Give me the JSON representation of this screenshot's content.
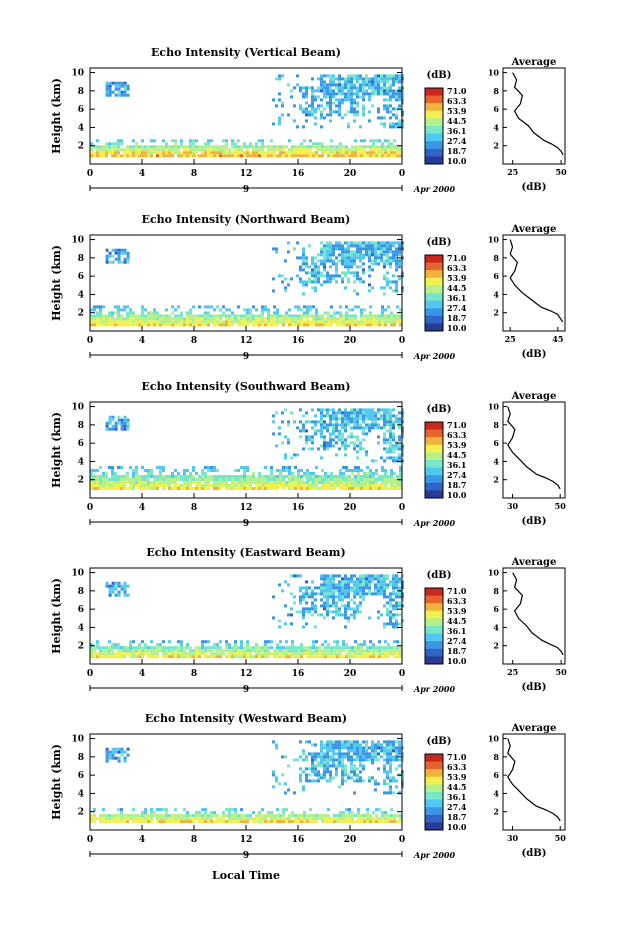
{
  "figure": {
    "colorbar_title": "(dB)",
    "colorbar_ticks": [
      "71.0",
      "63.3",
      "53.9",
      "44.5",
      "36.1",
      "27.4",
      "18.7",
      "10.0"
    ],
    "x_ticks": [
      "0",
      "4",
      "8",
      "12",
      "16",
      "20",
      "0"
    ],
    "y_ticks": [
      "2",
      "4",
      "6",
      "8",
      "10"
    ],
    "y_label": "Height (km)",
    "date_day": "9",
    "date_suffix": "Apr 2000",
    "profile_title": "Average",
    "profile_xlabel": "(dB)",
    "xlabel": "Local Time",
    "colors": {
      "scale": [
        "#283c96",
        "#3264c8",
        "#3c96e6",
        "#50c8f0",
        "#78e6c8",
        "#b4f08c",
        "#f0f050",
        "#f0b43c",
        "#e6642d",
        "#c8281e"
      ]
    }
  },
  "chart_data": [
    {
      "type": "heatmap",
      "title": "Echo Intensity (Vertical Beam)",
      "xlabel": "",
      "ylabel": "Height (km)",
      "xlim": [
        0,
        24
      ],
      "ylim": [
        0,
        10.5
      ],
      "value_range_db": [
        10,
        71
      ],
      "features": [
        {
          "name": "",
          "t": [
            1.2,
            3.0
          ],
          "h": [
            7.5,
            9.0
          ],
          "db": 28
        },
        {
          "name": "",
          "t": [
            14.0,
            24.0
          ],
          "h": [
            4.0,
            9.8
          ],
          "db": 30
        },
        {
          "name": "",
          "t": [
            0,
            24.0
          ],
          "h": [
            1.0,
            2.7
          ],
          "db": 45
        }
      ],
      "profile": {
        "title": "Average",
        "xlabel": "(dB)",
        "xticks": [
          "25",
          "50"
        ],
        "xlim": [
          20,
          52
        ],
        "x": [
          25,
          27,
          26,
          30,
          29,
          26,
          28,
          33,
          36,
          41,
          45,
          48,
          50,
          51
        ],
        "h": [
          10,
          9.2,
          8.4,
          7.5,
          6.6,
          5.8,
          5.0,
          4.2,
          3.4,
          2.6,
          2.2,
          1.8,
          1.4,
          1.0
        ]
      }
    },
    {
      "type": "heatmap",
      "title": "Echo Intensity (Northward Beam)",
      "xlabel": "",
      "ylabel": "Height (km)",
      "xlim": [
        0,
        24
      ],
      "ylim": [
        0,
        10.5
      ],
      "value_range_db": [
        10,
        71
      ],
      "features": [
        {
          "name": "",
          "t": [
            1.2,
            3.0
          ],
          "h": [
            7.5,
            9.0
          ],
          "db": 28
        },
        {
          "name": "",
          "t": [
            14.0,
            24.0
          ],
          "h": [
            4.0,
            9.8
          ],
          "db": 30
        },
        {
          "name": "",
          "t": [
            0,
            24.0
          ],
          "h": [
            0.8,
            2.8
          ],
          "db": 42
        }
      ],
      "profile": {
        "title": "Average",
        "xlabel": "(dB)",
        "xticks": [
          "25",
          "45"
        ],
        "xlim": [
          22,
          48
        ],
        "x": [
          25,
          26,
          25,
          28,
          27,
          25,
          27,
          30,
          34,
          38,
          42,
          45,
          46,
          47
        ],
        "h": [
          10,
          9.2,
          8.4,
          7.5,
          6.6,
          5.8,
          5.0,
          4.2,
          3.4,
          2.6,
          2.2,
          1.8,
          1.4,
          1.0
        ]
      }
    },
    {
      "type": "heatmap",
      "title": "Echo Intensity (Southward Beam)",
      "xlabel": "",
      "ylabel": "Height (km)",
      "xlim": [
        0,
        24
      ],
      "ylim": [
        0,
        10.5
      ],
      "value_range_db": [
        10,
        71
      ],
      "features": [
        {
          "name": "",
          "t": [
            1.2,
            3.0
          ],
          "h": [
            7.5,
            9.0
          ],
          "db": 28
        },
        {
          "name": "",
          "t": [
            14.0,
            24.0
          ],
          "h": [
            4.0,
            9.8
          ],
          "db": 30
        },
        {
          "name": "",
          "t": [
            0,
            24.0
          ],
          "h": [
            1.0,
            3.5
          ],
          "db": 42
        }
      ],
      "profile": {
        "title": "Average",
        "xlabel": "(dB)",
        "xticks": [
          "30",
          "50"
        ],
        "xlim": [
          26,
          52
        ],
        "x": [
          28,
          29,
          28,
          31,
          30,
          28,
          30,
          33,
          36,
          40,
          44,
          47,
          49,
          50
        ],
        "h": [
          10,
          9.2,
          8.4,
          7.5,
          6.6,
          5.8,
          5.0,
          4.2,
          3.4,
          2.6,
          2.2,
          1.8,
          1.4,
          1.0
        ]
      }
    },
    {
      "type": "heatmap",
      "title": "Echo Intensity (Eastward Beam)",
      "xlabel": "",
      "ylabel": "Height (km)",
      "xlim": [
        0,
        24
      ],
      "ylim": [
        0,
        10.5
      ],
      "value_range_db": [
        10,
        71
      ],
      "features": [
        {
          "name": "",
          "t": [
            1.2,
            3.0
          ],
          "h": [
            7.5,
            9.0
          ],
          "db": 28
        },
        {
          "name": "",
          "t": [
            14.0,
            24.0
          ],
          "h": [
            4.0,
            9.8
          ],
          "db": 30
        },
        {
          "name": "",
          "t": [
            0,
            24.0
          ],
          "h": [
            0.8,
            2.6
          ],
          "db": 42
        }
      ],
      "profile": {
        "title": "Average",
        "xlabel": "(dB)",
        "xticks": [
          "25",
          "50"
        ],
        "xlim": [
          20,
          52
        ],
        "x": [
          25,
          27,
          26,
          30,
          29,
          26,
          28,
          32,
          35,
          40,
          44,
          48,
          50,
          51
        ],
        "h": [
          10,
          9.2,
          8.4,
          7.5,
          6.6,
          5.8,
          5.0,
          4.2,
          3.4,
          2.6,
          2.2,
          1.8,
          1.4,
          1.0
        ]
      }
    },
    {
      "type": "heatmap",
      "title": "Echo Intensity (Westward Beam)",
      "xlabel": "Local Time",
      "ylabel": "Height (km)",
      "xlim": [
        0,
        24
      ],
      "ylim": [
        0,
        10.5
      ],
      "value_range_db": [
        10,
        71
      ],
      "features": [
        {
          "name": "",
          "t": [
            1.2,
            3.0
          ],
          "h": [
            7.5,
            9.0
          ],
          "db": 28
        },
        {
          "name": "",
          "t": [
            14.0,
            24.0
          ],
          "h": [
            4.0,
            9.8
          ],
          "db": 30
        },
        {
          "name": "",
          "t": [
            0,
            24.0
          ],
          "h": [
            0.8,
            2.4
          ],
          "db": 45
        }
      ],
      "profile": {
        "title": "Average",
        "xlabel": "(dB)",
        "xticks": [
          "30",
          "50"
        ],
        "xlim": [
          26,
          52
        ],
        "x": [
          28,
          29,
          28,
          31,
          30,
          28,
          30,
          33,
          36,
          40,
          44,
          47,
          49,
          50
        ],
        "h": [
          10,
          9.2,
          8.4,
          7.5,
          6.6,
          5.8,
          5.0,
          4.2,
          3.4,
          2.6,
          2.2,
          1.8,
          1.4,
          1.0
        ]
      }
    }
  ]
}
